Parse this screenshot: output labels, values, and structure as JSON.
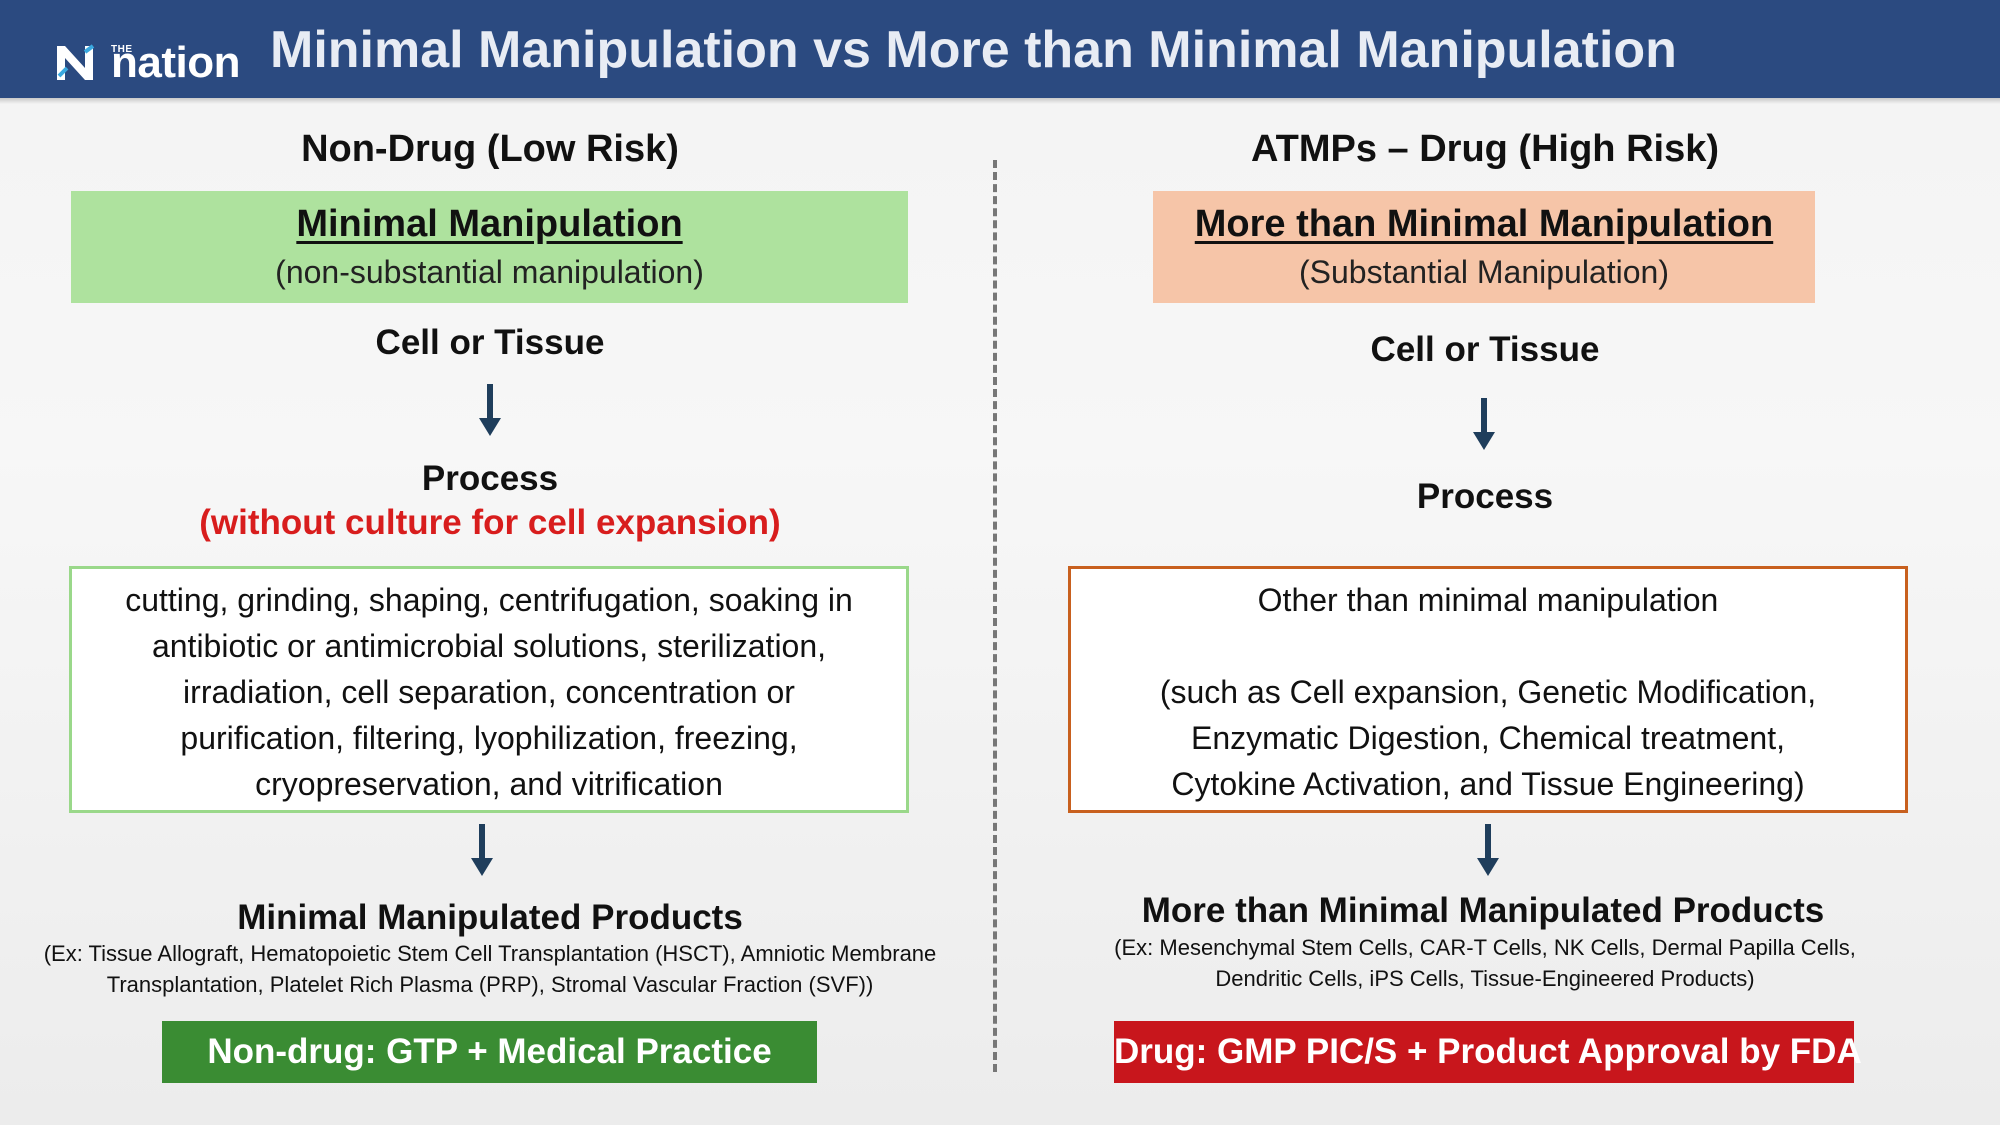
{
  "header": {
    "logo_the": "THE",
    "logo_word": "nation",
    "title": "Minimal Manipulation vs More than Minimal Manipulation"
  },
  "left": {
    "heading": "Non-Drug (Low Risk)",
    "box_main": "Minimal Manipulation",
    "box_sub": "(non-substantial manipulation)",
    "cell": "Cell or Tissue",
    "process": "Process",
    "process_note": "(without culture for cell expansion)",
    "methods": [
      "cutting, grinding, shaping, centrifugation, soaking in",
      "antibiotic or antimicrobial solutions, sterilization,",
      "irradiation, cell separation, concentration or",
      "purification, filtering, lyophilization, freezing,",
      "cryopreservation, and vitrification"
    ],
    "products_title": "Minimal Manipulated Products",
    "products_ex": [
      "(Ex: Tissue Allograft, Hematopoietic Stem Cell Transplantation (HSCT), Amniotic Membrane",
      "Transplantation, Platelet Rich Plasma (PRP), Stromal Vascular Fraction (SVF))"
    ],
    "banner": "Non-drug: GTP + Medical Practice"
  },
  "right": {
    "heading": "ATMPs – Drug (High Risk)",
    "box_main": "More than Minimal Manipulation",
    "box_sub": "(Substantial Manipulation)",
    "cell": "Cell or Tissue",
    "process": "Process",
    "methods_intro": "Other than minimal manipulation",
    "methods": [
      "(such as Cell expansion, Genetic Modification,",
      "Enzymatic Digestion, Chemical treatment,",
      "Cytokine Activation, and Tissue Engineering)"
    ],
    "products_title": "More than Minimal Manipulated Products",
    "products_ex": [
      "(Ex: Mesenchymal Stem Cells, CAR-T Cells, NK Cells, Dermal Papilla Cells,",
      "Dendritic Cells, iPS Cells, Tissue-Engineered Products)"
    ],
    "banner": "Drug: GMP PIC/S + Product Approval by FDA"
  },
  "colors": {
    "header_bg": "#2b4a80",
    "green_fill": "#aee29e",
    "orange_fill": "#f6c5a8",
    "green_banner": "#3a8c33",
    "red_banner": "#c8161c",
    "red_text": "#d81d1d",
    "arrow": "#1f3e5c"
  }
}
